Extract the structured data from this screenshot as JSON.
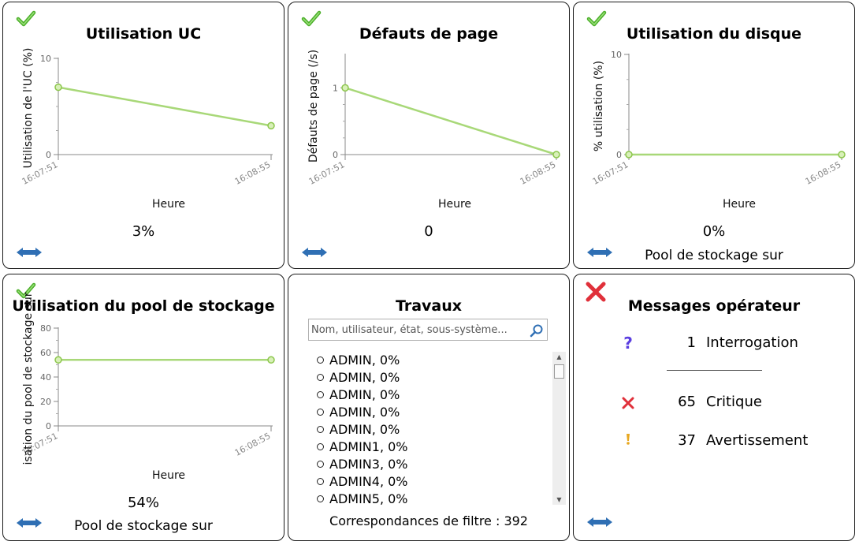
{
  "colors": {
    "line": "#a8d878",
    "point": "#8cc64c",
    "ok": "#4caf2a",
    "error": "#e0303a",
    "warning": "#e8a820",
    "question": "#5a3ee0",
    "arrow": "#2f6fb4"
  },
  "panels": {
    "cpu": {
      "title": "Utilisation UC",
      "status_icon": "check-icon",
      "value": "3%",
      "expand_icon": "double-arrow-icon",
      "chart_data": {
        "type": "line",
        "xlabel": "Heure",
        "ylabel": "Utilisation de l'UC (%)",
        "x": [
          "16:07:51",
          "16:08:55"
        ],
        "y": [
          7,
          3
        ],
        "ylim": [
          0,
          10
        ],
        "yticks": [
          "0",
          "10"
        ],
        "grid": false
      }
    },
    "pagefaults": {
      "title": "Défauts de page",
      "status_icon": "check-icon",
      "value": "0",
      "expand_icon": "double-arrow-icon",
      "chart_data": {
        "type": "line",
        "xlabel": "Heure",
        "ylabel": "Défauts de page (/s)",
        "x": [
          "16:07:51",
          "16:08:55"
        ],
        "y": [
          1,
          0
        ],
        "ylim": [
          0,
          1.5
        ],
        "yticks": [
          "0",
          "1"
        ],
        "grid": false
      }
    },
    "disk": {
      "title": "Utilisation du disque",
      "status_icon": "check-icon",
      "value": "0%",
      "subtitle": "Pool de stockage sur",
      "expand_icon": "double-arrow-icon",
      "chart_data": {
        "type": "line",
        "xlabel": "Heure",
        "ylabel": "% utilisation (%)",
        "x": [
          "16:07:51",
          "16:08:55"
        ],
        "y": [
          0,
          0
        ],
        "ylim": [
          0,
          10
        ],
        "yticks": [
          "0",
          "10"
        ],
        "grid": false
      }
    },
    "pool": {
      "title": "Utilisation du pool de stockage",
      "status_icon": "check-icon",
      "value": "54%",
      "subtitle": "Pool de stockage sur",
      "expand_icon": "double-arrow-icon",
      "chart_data": {
        "type": "line",
        "xlabel": "Heure",
        "ylabel": "isation du pool de stockage sur",
        "x": [
          "16:07:51",
          "16:08:55"
        ],
        "y": [
          54,
          54
        ],
        "ylim": [
          0,
          80
        ],
        "yticks": [
          "0",
          "20",
          "40",
          "60",
          "80"
        ],
        "grid": false
      }
    },
    "jobs": {
      "title": "Travaux",
      "search_placeholder": "Nom, utilisateur, état, sous-système...",
      "search_icon": "magnifier-icon",
      "items": [
        "ADMIN, 0%",
        "ADMIN, 0%",
        "ADMIN, 0%",
        "ADMIN, 0%",
        "ADMIN, 0%",
        "ADMIN1, 0%",
        "ADMIN3, 0%",
        "ADMIN4, 0%",
        "ADMIN5, 0%"
      ],
      "matches": "Correspondances de filtre : 392"
    },
    "messages": {
      "title": "Messages opérateur",
      "status_icon": "error-icon",
      "expand_icon": "double-arrow-icon",
      "rows": [
        {
          "icon": "question-icon",
          "count": "1",
          "label": "Interrogation"
        },
        {
          "icon": "critical-icon",
          "count": "65",
          "label": "Critique"
        },
        {
          "icon": "warning-icon",
          "count": "37",
          "label": "Avertissement"
        }
      ]
    }
  }
}
